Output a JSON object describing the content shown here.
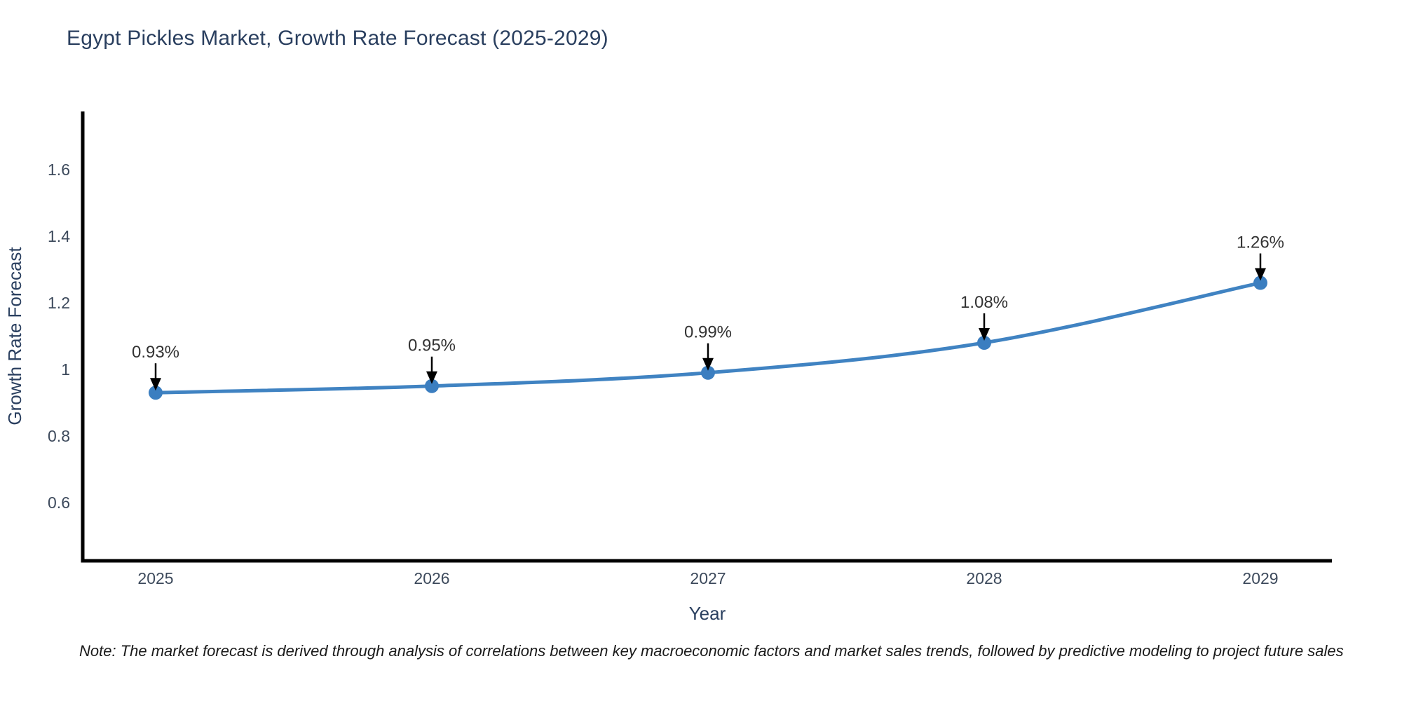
{
  "title": "Egypt Pickles Market, Growth Rate Forecast (2025-2029)",
  "note": "Note: The market forecast is derived through analysis of correlations between key macroeconomic factors and market sales trends, followed by predictive modeling to project future sales",
  "chart_data": {
    "type": "line",
    "title": "Egypt Pickles Market, Growth Rate Forecast (2025-2029)",
    "x": [
      "2025",
      "2026",
      "2027",
      "2028",
      "2029"
    ],
    "series": [
      {
        "name": "Growth Rate Forecast",
        "values": [
          0.93,
          0.95,
          0.99,
          1.08,
          1.26
        ]
      }
    ],
    "point_labels": [
      "0.93%",
      "0.95%",
      "0.99%",
      "1.08%",
      "1.26%"
    ],
    "xlabel": "Year",
    "ylabel": "Growth Rate Forecast",
    "ylim": [
      0.425,
      1.775
    ],
    "yticks": [
      0.6,
      0.8,
      1,
      1.2,
      1.4,
      1.6
    ],
    "grid": false,
    "legend_position": "none",
    "line_shape": "spline",
    "annotations_have_arrows": true,
    "colors": {
      "line": "#4083c2",
      "marker": "#3b7ec0",
      "axis_line": "#000000",
      "title_text": "#2a3f5f",
      "axis_title_text": "#2a3f5f",
      "tick_text": "#3d4a5c",
      "annotation_text": "#333333",
      "arrow": "#000000",
      "note_text": "#1a1a1a",
      "background": "#ffffff"
    }
  }
}
